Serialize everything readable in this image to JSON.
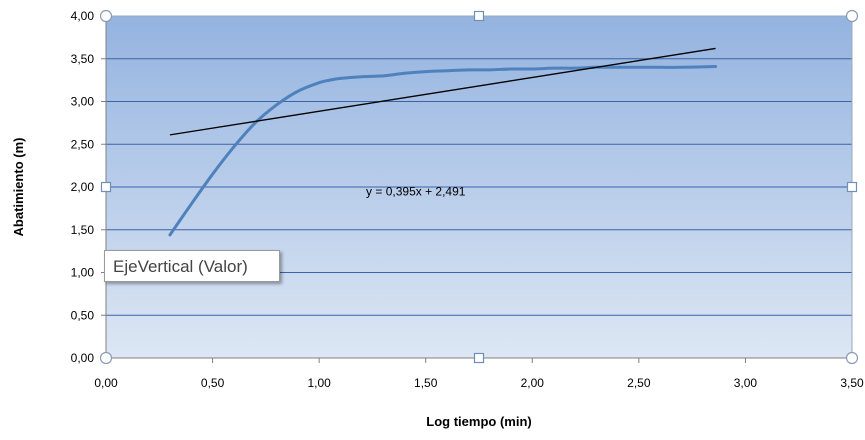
{
  "chart_data": {
    "type": "line",
    "xlabel": "Log tiempo (min)",
    "ylabel": "Abatimiento (m)",
    "xlim": [
      0,
      3.5
    ],
    "ylim": [
      0,
      4
    ],
    "x_ticks": [
      "0,00",
      "0,50",
      "1,00",
      "1,50",
      "2,00",
      "2,50",
      "3,00",
      "3,50"
    ],
    "y_ticks": [
      "0,00",
      "0,50",
      "1,00",
      "1,50",
      "2,00",
      "2,50",
      "3,00",
      "3,50",
      "4,00"
    ],
    "grid": true,
    "series": [
      {
        "color": "#4f81bd",
        "x": [
          0.3,
          0.4,
          0.5,
          0.6,
          0.7,
          0.8,
          0.9,
          1.0,
          1.05,
          1.1,
          1.2,
          1.3,
          1.4,
          1.5,
          1.6,
          1.7,
          1.8,
          1.9,
          2.0,
          2.1,
          2.2,
          2.3,
          2.4,
          2.5,
          2.6,
          2.7,
          2.86
        ],
        "y": [
          1.44,
          1.8,
          2.15,
          2.47,
          2.75,
          2.96,
          3.12,
          3.22,
          3.25,
          3.27,
          3.29,
          3.3,
          3.33,
          3.35,
          3.36,
          3.37,
          3.37,
          3.38,
          3.38,
          3.39,
          3.39,
          3.4,
          3.4,
          3.4,
          3.4,
          3.4,
          3.41
        ]
      }
    ],
    "trendline": {
      "equation": "y = 0,395x + 2,491",
      "slope": 0.395,
      "intercept": 2.491,
      "x_range": [
        0.3,
        2.86
      ],
      "color": "#000000"
    },
    "tooltip": "EjeVertical (Valor)"
  }
}
